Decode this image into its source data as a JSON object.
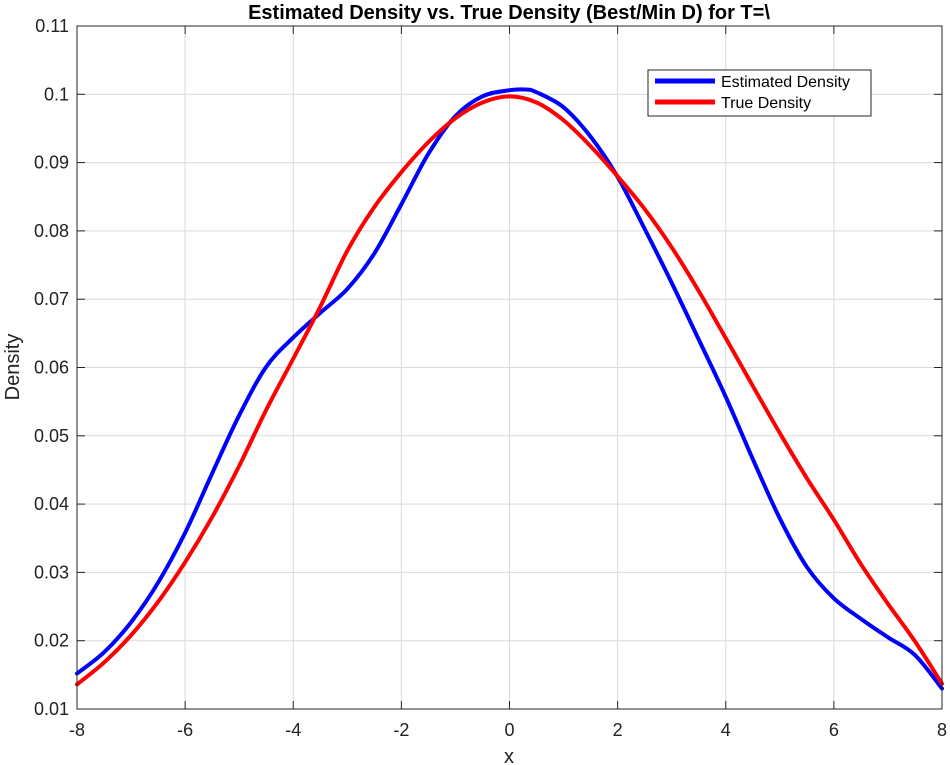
{
  "chart_data": {
    "type": "line",
    "title": "Estimated Density vs. True Density (Best/Min D) for T=\\",
    "xlabel": "x",
    "ylabel": "Density",
    "xlim": [
      -8,
      8
    ],
    "ylim": [
      0.01,
      0.11
    ],
    "xticks": [
      -8,
      -6,
      -4,
      -2,
      0,
      2,
      4,
      6,
      8
    ],
    "yticks": [
      0.01,
      0.02,
      0.03,
      0.04,
      0.05,
      0.06,
      0.07,
      0.08,
      0.09,
      0.1,
      0.11
    ],
    "xtick_labels": [
      "-8",
      "-6",
      "-4",
      "-2",
      "0",
      "2",
      "4",
      "6",
      "8"
    ],
    "ytick_labels": [
      "0.01",
      "0.02",
      "0.03",
      "0.04",
      "0.05",
      "0.06",
      "0.07",
      "0.08",
      "0.09",
      "0.1",
      "0.11"
    ],
    "grid": true,
    "legend_position": "top-right",
    "series": [
      {
        "name": "Estimated Density",
        "color": "#0000ff",
        "x": [
          -8,
          -7.5,
          -7,
          -6.5,
          -6,
          -5.5,
          -5,
          -4.5,
          -4,
          -3.5,
          -3,
          -2.5,
          -2,
          -1.5,
          -1,
          -0.5,
          0,
          0.3,
          0.5,
          1,
          1.5,
          2,
          2.5,
          3,
          3.5,
          4,
          4.5,
          5,
          5.5,
          6,
          6.5,
          7,
          7.5,
          8
        ],
        "y": [
          0.0152,
          0.0183,
          0.0227,
          0.0285,
          0.0358,
          0.0445,
          0.053,
          0.0601,
          0.0644,
          0.068,
          0.0715,
          0.0767,
          0.0839,
          0.0913,
          0.0968,
          0.0997,
          0.1006,
          0.1007,
          0.1003,
          0.0981,
          0.0938,
          0.0879,
          0.0803,
          0.0724,
          0.0641,
          0.0557,
          0.0466,
          0.0379,
          0.0308,
          0.0262,
          0.0232,
          0.0205,
          0.0179,
          0.013
        ]
      },
      {
        "name": "True Density",
        "color": "#ff0000",
        "x": [
          -8,
          -7.5,
          -7,
          -6.5,
          -6,
          -5.5,
          -5,
          -4.5,
          -4,
          -3.5,
          -3,
          -2.5,
          -2,
          -1.5,
          -1,
          -0.5,
          0,
          0.5,
          1,
          1.5,
          2,
          2.5,
          3,
          3.5,
          4,
          4.5,
          5,
          5.5,
          6,
          6.5,
          7,
          7.5,
          8
        ],
        "y": [
          0.0136,
          0.0168,
          0.0208,
          0.0257,
          0.0315,
          0.0381,
          0.0456,
          0.0538,
          0.0613,
          0.0689,
          0.0771,
          0.0835,
          0.0886,
          0.093,
          0.0965,
          0.0988,
          0.0997,
          0.0988,
          0.0962,
          0.0924,
          0.088,
          0.0832,
          0.0776,
          0.0712,
          0.0643,
          0.0573,
          0.0504,
          0.0438,
          0.0377,
          0.0312,
          0.0254,
          0.0199,
          0.0137
        ]
      }
    ]
  }
}
